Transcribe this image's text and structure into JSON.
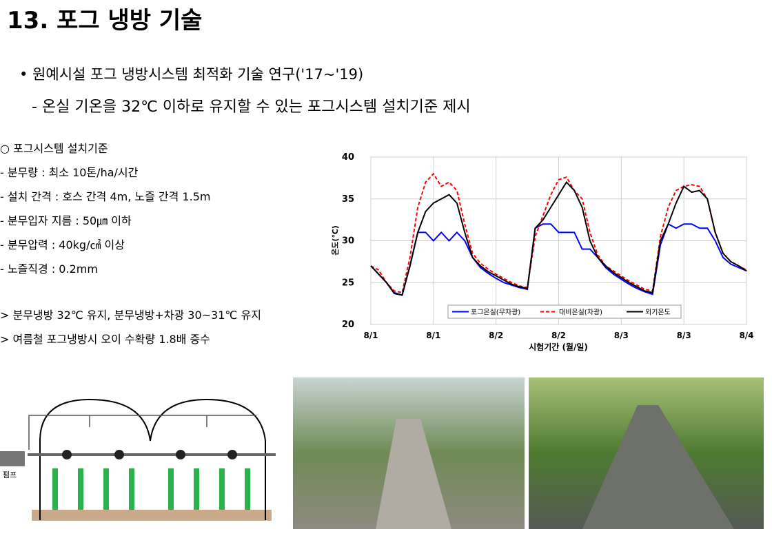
{
  "header": {
    "title": "13. 포그 냉방 기술"
  },
  "bullets": [
    "• 원예시설 포그 냉방시스템 최적화 기술 연구('17~'19)",
    "- 온실 기온을 32℃ 이하로 유지할 수 있는 포그시스템 설치기준 제시"
  ],
  "criteria": {
    "heading": "○ 포그시스템 설치기준",
    "items": [
      "- 분무량 : 최소 10톤/ha/시간",
      "- 설치 간격 : 호스 간격 4m, 노즐 간격 1.5m",
      "- 분무입자 지름 : 50㎛ 이하",
      "- 분무압력 : 40kg/㎠ 이상",
      "- 노즐직경 : 0.2mm"
    ]
  },
  "results": [
    "> 분무냉방 32℃ 유지, 분무냉방+차광 30~31℃ 유지",
    "> 여름철 포그냉방시 오이 수확량 1.8배 증수"
  ],
  "diagram": {
    "pump_label": "펌프"
  },
  "chart_data": {
    "type": "line",
    "x_label": "시험기간 (월/일)",
    "y_label": "온도(℃)",
    "xlim": [
      0,
      3
    ],
    "xticks": [
      {
        "value": 0,
        "label": "8/1"
      },
      {
        "value": 0.5,
        "label": "8/1"
      },
      {
        "value": 1,
        "label": "8/2"
      },
      {
        "value": 1.5,
        "label": "8/2"
      },
      {
        "value": 2,
        "label": "8/3"
      },
      {
        "value": 2.5,
        "label": "8/3"
      },
      {
        "value": 3,
        "label": "8/4"
      }
    ],
    "ylim": [
      20,
      40
    ],
    "yticks": [
      20,
      25,
      30,
      35,
      40
    ],
    "grid": true,
    "legend": "lower right",
    "x": [
      0,
      0.0625,
      0.125,
      0.1875,
      0.25,
      0.3125,
      0.375,
      0.4375,
      0.5,
      0.5625,
      0.625,
      0.6875,
      0.75,
      0.8125,
      0.875,
      0.9375,
      1,
      1.0625,
      1.125,
      1.1875,
      1.25,
      1.3125,
      1.375,
      1.4375,
      1.5,
      1.5625,
      1.625,
      1.6875,
      1.75,
      1.8125,
      1.875,
      1.9375,
      2,
      2.0625,
      2.125,
      2.1875,
      2.25,
      2.3125,
      2.375,
      2.4375,
      2.5,
      2.5625,
      2.625,
      2.6875,
      2.75,
      2.8125,
      2.875,
      2.9375,
      3
    ],
    "series": [
      {
        "name": "포그온실(무차광)",
        "color": "#0000ff",
        "dash": "none",
        "values": [
          27,
          26,
          25,
          23.8,
          23.5,
          27,
          31,
          31,
          30,
          31,
          30,
          31,
          30,
          28,
          26.8,
          26.1,
          25.5,
          25,
          24.7,
          24.4,
          24.2,
          31.5,
          32,
          32,
          31,
          31,
          31,
          29,
          29,
          28,
          26.8,
          26,
          25.4,
          24.8,
          24.3,
          23.9,
          23.6,
          29.5,
          32,
          31.5,
          32,
          32,
          31.5,
          31.5,
          30,
          28,
          27.2,
          26.8,
          26.4
        ]
      },
      {
        "name": "대비온실(차광)",
        "color": "#ff0000",
        "dash": "5,3",
        "values": [
          27,
          26.5,
          25,
          24,
          23.8,
          28,
          34,
          37,
          38,
          36.5,
          37,
          36,
          32,
          28.5,
          27.3,
          26.6,
          26,
          25.5,
          25,
          24.6,
          24.4,
          30.5,
          33,
          35.5,
          37.3,
          37.6,
          36,
          35,
          31,
          28.3,
          27,
          26.4,
          25.8,
          25.2,
          24.7,
          24.2,
          24,
          30.5,
          34,
          36,
          36.5,
          36.7,
          36.5,
          35,
          31,
          28.5,
          27.5,
          27,
          26.5
        ]
      },
      {
        "name": "외기온도",
        "color": "#000000",
        "dash": "none",
        "values": [
          27,
          26,
          25,
          23.7,
          23.5,
          27,
          31,
          33.5,
          34.5,
          35,
          35.5,
          34.5,
          31,
          28,
          27,
          26.3,
          25.8,
          25.3,
          24.8,
          24.5,
          24.3,
          31.5,
          32.5,
          34,
          35.5,
          37,
          36,
          34,
          30,
          28,
          27,
          26.2,
          25.6,
          25,
          24.5,
          24,
          23.8,
          30,
          32,
          34.5,
          36.5,
          35.8,
          36,
          35,
          31,
          28.5,
          27.5,
          27,
          26.4
        ]
      }
    ]
  }
}
